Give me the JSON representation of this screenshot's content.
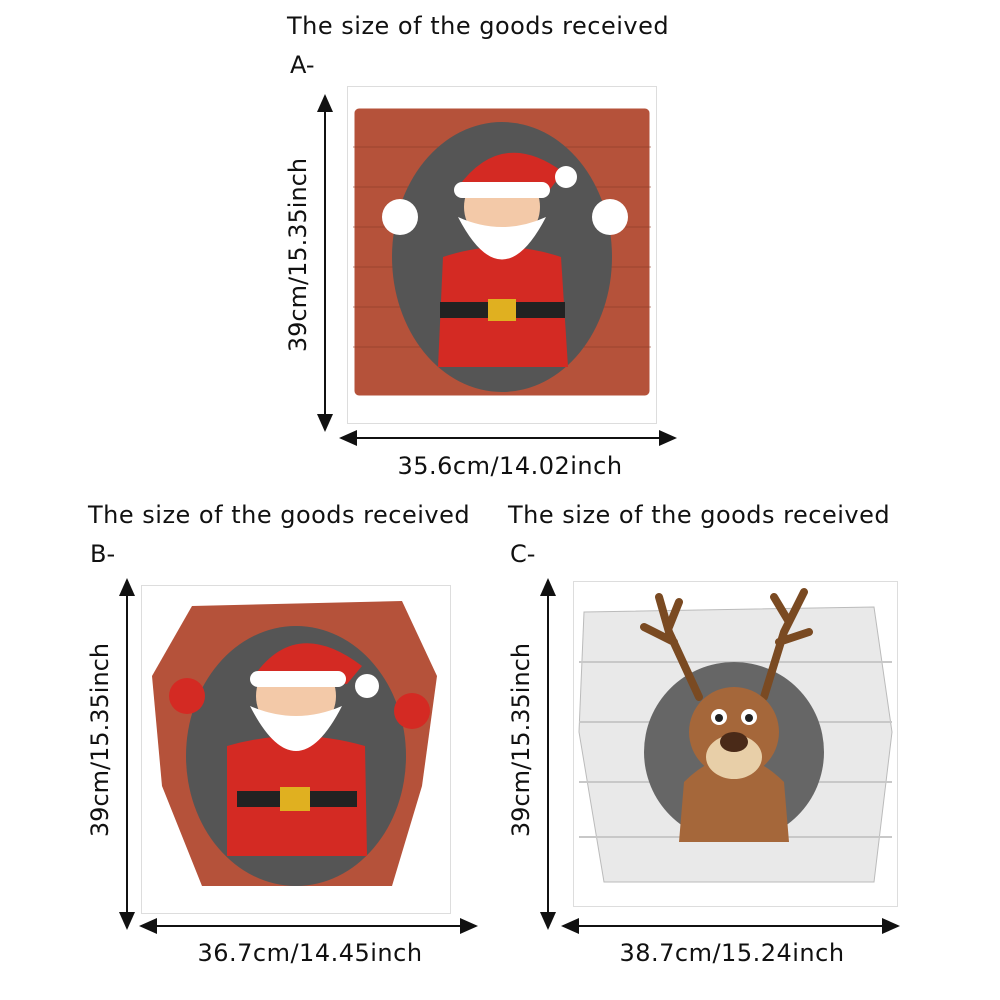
{
  "panels": [
    {
      "id": "A",
      "title": "The size of the goods received",
      "letter": "A-",
      "height_label": "39cm/15.35inch",
      "width_label": "35.6cm/14.02inch",
      "subject": "santa-breaking-brick-wall"
    },
    {
      "id": "B",
      "title": "The size of the goods received",
      "letter": "B-",
      "height_label": "39cm/15.35inch",
      "width_label": "36.7cm/14.45inch",
      "subject": "santa-breaking-brick-wall"
    },
    {
      "id": "C",
      "title": "The size of the goods received",
      "letter": "C-",
      "height_label": "39cm/15.35inch",
      "width_label": "38.7cm/15.24inch",
      "subject": "reindeer-breaking-white-wall"
    }
  ],
  "colors": {
    "brick": "#b5523a",
    "stone": "#e9e9e9",
    "santa_red": "#d42a23",
    "reindeer": "#a5673a"
  }
}
